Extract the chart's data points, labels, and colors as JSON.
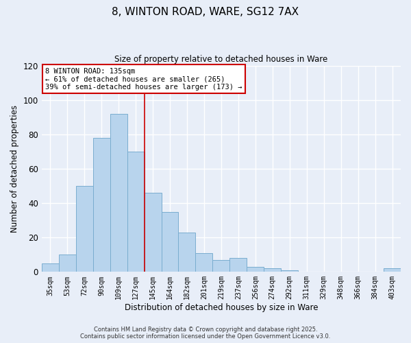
{
  "title_line1": "8, WINTON ROAD, WARE, SG12 7AX",
  "title_line2": "Size of property relative to detached houses in Ware",
  "bar_labels": [
    "35sqm",
    "53sqm",
    "72sqm",
    "90sqm",
    "109sqm",
    "127sqm",
    "145sqm",
    "164sqm",
    "182sqm",
    "201sqm",
    "219sqm",
    "237sqm",
    "256sqm",
    "274sqm",
    "292sqm",
    "311sqm",
    "329sqm",
    "348sqm",
    "366sqm",
    "384sqm",
    "403sqm"
  ],
  "bar_values": [
    5,
    10,
    50,
    78,
    92,
    70,
    46,
    35,
    23,
    11,
    7,
    8,
    3,
    2,
    1,
    0,
    0,
    0,
    0,
    0,
    2
  ],
  "bar_color": "#b8d4ed",
  "bar_edge_color": "#7aadcf",
  "ylabel": "Number of detached properties",
  "xlabel": "Distribution of detached houses by size in Ware",
  "ylim": [
    0,
    120
  ],
  "yticks": [
    0,
    20,
    40,
    60,
    80,
    100,
    120
  ],
  "vline_x": 5.5,
  "vline_color": "#cc0000",
  "annotation_title": "8 WINTON ROAD: 135sqm",
  "annotation_line2": "← 61% of detached houses are smaller (265)",
  "annotation_line3": "39% of semi-detached houses are larger (173) →",
  "annotation_box_color": "#ffffff",
  "annotation_border_color": "#cc0000",
  "footer_line1": "Contains HM Land Registry data © Crown copyright and database right 2025.",
  "footer_line2": "Contains public sector information licensed under the Open Government Licence v3.0.",
  "background_color": "#e8eef8",
  "grid_color": "#ffffff"
}
